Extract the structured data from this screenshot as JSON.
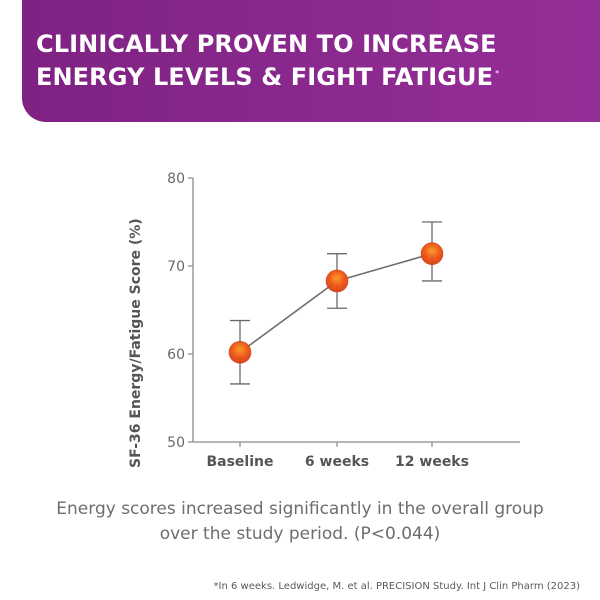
{
  "header": {
    "title_line1": "CLINICALLY PROVEN TO INCREASE",
    "title_line2": "ENERGY LEVELS & FIGHT FATIGUE",
    "title_mark": "*",
    "background_color": "#8a278d"
  },
  "chart_data": {
    "type": "line",
    "title": "",
    "xlabel": "",
    "ylabel": "SF-36 Energy/Fatigue Score (%)",
    "categories": [
      "Baseline",
      "6 weeks",
      "12 weeks"
    ],
    "series": [
      {
        "values": [
          60.2,
          68.3,
          71.4
        ],
        "error_low": [
          56.6,
          65.2,
          68.3
        ],
        "error_high": [
          63.8,
          71.4,
          75.0
        ]
      }
    ],
    "ylim": [
      50,
      80
    ],
    "yticks": [
      50,
      60,
      70,
      80
    ],
    "grid": false,
    "line_color": "#6e6e6e",
    "marker_colors": [
      "#ff9a1f",
      "#ee5412",
      "#d93a10"
    ]
  },
  "caption": "Energy scores increased significantly in the overall group over the study period. (P<0.044)",
  "footnote": "*In 6 weeks. Ledwidge, M. et al. PRECISION Study. Int J Clin Pharm (2023)"
}
